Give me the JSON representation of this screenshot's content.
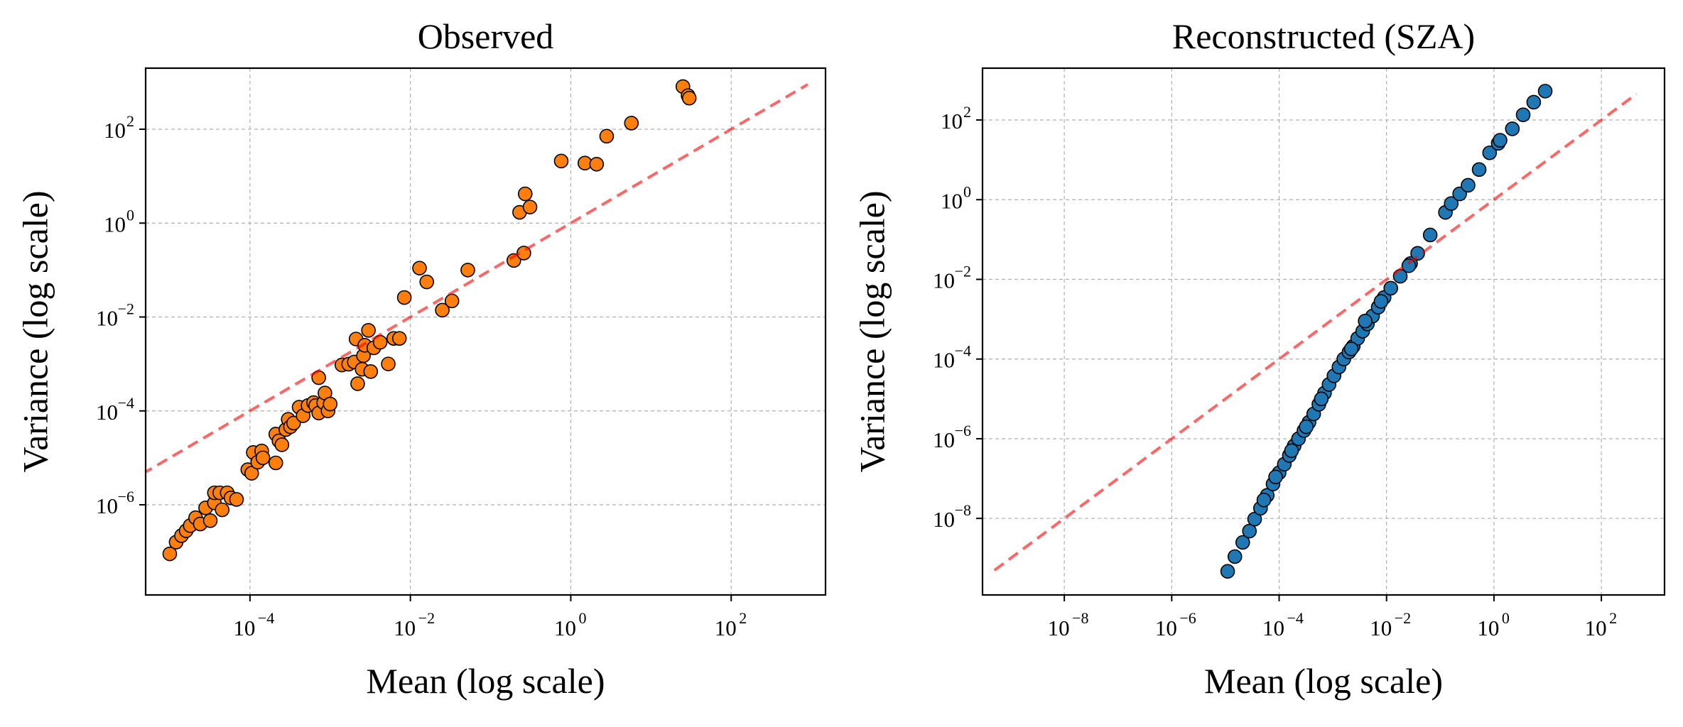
{
  "chart_data": [
    {
      "type": "scatter",
      "title": "Observed",
      "xlabel": "Mean (log scale)",
      "ylabel": "Variance (log scale)",
      "xscale": "log",
      "yscale": "log",
      "xlim": [
        5e-06,
        1500
      ],
      "ylim": [
        1.2e-08,
        2000
      ],
      "xticks": [
        -4,
        -2,
        0,
        2
      ],
      "yticks": [
        -6,
        -4,
        -2,
        0,
        2
      ],
      "grid": true,
      "marker_color": "#ff7f0e",
      "reference_line": {
        "type": "y=x",
        "x_range": [
          4.5e-06,
          900
        ],
        "color": "#ff0000"
      },
      "points": [
        [
          1e-05,
          9e-08
        ],
        [
          1.2e-05,
          1.6e-07
        ],
        [
          1.4e-05,
          2.2e-07
        ],
        [
          1.6e-05,
          2.8e-07
        ],
        [
          1.8e-05,
          3.6e-07
        ],
        [
          2.1e-05,
          5.3e-07
        ],
        [
          2.4e-05,
          3.9e-07
        ],
        [
          2.8e-05,
          8.6e-07
        ],
        [
          3.2e-05,
          4.6e-07
        ],
        [
          3.6e-05,
          1.1e-06
        ],
        [
          3.6e-05,
          1.8e-06
        ],
        [
          4.2e-05,
          1.8e-06
        ],
        [
          4.5e-05,
          7.8e-07
        ],
        [
          5.2e-05,
          1.8e-06
        ],
        [
          5.8e-05,
          1.4e-06
        ],
        [
          6.8e-05,
          1.3e-06
        ],
        [
          9.4e-05,
          5.6e-06
        ],
        [
          0.000105,
          4.7e-06
        ],
        [
          0.00011,
          1.3e-05
        ],
        [
          0.000125,
          8.1e-06
        ],
        [
          0.00014,
          1.4e-05
        ],
        [
          0.000145,
          1e-05
        ],
        [
          0.00021,
          3.2e-05
        ],
        [
          0.00021,
          7.8e-06
        ],
        [
          0.00023,
          2.3e-05
        ],
        [
          0.00025,
          1.9e-05
        ],
        [
          0.00028,
          4e-05
        ],
        [
          0.0003,
          6.6e-05
        ],
        [
          0.00032,
          4.6e-05
        ],
        [
          0.00035,
          5.5e-05
        ],
        [
          0.00041,
          0.00012
        ],
        [
          0.00046,
          7.9e-05
        ],
        [
          0.00053,
          0.00013
        ],
        [
          0.00062,
          0.00015
        ],
        [
          0.00066,
          0.00013
        ],
        [
          0.00072,
          0.00051
        ],
        [
          0.00072,
          9e-05
        ],
        [
          0.00083,
          0.00015
        ],
        [
          0.00086,
          0.00024
        ],
        [
          0.00094,
          0.0001
        ],
        [
          0.001,
          0.00014
        ],
        [
          0.0014,
          0.00095
        ],
        [
          0.0017,
          0.00099
        ],
        [
          0.002,
          0.0011
        ],
        [
          0.0021,
          0.0034
        ],
        [
          0.0022,
          0.00038
        ],
        [
          0.0025,
          0.00077
        ],
        [
          0.0026,
          0.0015
        ],
        [
          0.0027,
          0.0025
        ],
        [
          0.003,
          0.0052
        ],
        [
          0.0032,
          0.00069
        ],
        [
          0.0035,
          0.0022
        ],
        [
          0.0042,
          0.0029
        ],
        [
          0.0053,
          0.001
        ],
        [
          0.0062,
          0.0035
        ],
        [
          0.0073,
          0.0035
        ],
        [
          0.0084,
          0.026
        ],
        [
          0.013,
          0.11
        ],
        [
          0.016,
          0.056
        ],
        [
          0.025,
          0.014
        ],
        [
          0.033,
          0.022
        ],
        [
          0.052,
          0.1
        ],
        [
          0.195,
          0.16
        ],
        [
          0.23,
          1.7
        ],
        [
          0.26,
          0.23
        ],
        [
          0.27,
          4.2
        ],
        [
          0.31,
          2.2
        ],
        [
          0.76,
          21.0
        ],
        [
          1.5,
          19.0
        ],
        [
          2.1,
          18.0
        ],
        [
          2.8,
          71.0
        ],
        [
          5.7,
          135.0
        ],
        [
          25,
          810.0
        ],
        [
          29,
          520.0
        ],
        [
          30,
          460.0
        ]
      ]
    },
    {
      "type": "scatter",
      "title": "Reconstructed (SZA)",
      "xlabel": "Mean (log scale)",
      "ylabel": "Variance (log scale)",
      "xscale": "log",
      "yscale": "log",
      "xlim": [
        3e-10,
        1500
      ],
      "ylim": [
        1.2e-10,
        2000
      ],
      "xticks": [
        -8,
        -6,
        -4,
        -2,
        0,
        2
      ],
      "yticks": [
        -8,
        -6,
        -4,
        -2,
        0,
        2
      ],
      "grid": true,
      "marker_color": "#1f77b4",
      "reference_line": {
        "type": "y=x",
        "x_range": [
          5e-10,
          450
        ],
        "color": "#ff0000"
      },
      "points": [
        [
          1.1e-05,
          4.7e-10
        ],
        [
          1.5e-05,
          1.1e-09
        ],
        [
          2.1e-05,
          2.5e-09
        ],
        [
          2.8e-05,
          4.8e-09
        ],
        [
          3.5e-05,
          9.6e-09
        ],
        [
          4.5e-05,
          1.8e-08
        ],
        [
          6e-05,
          3.8e-08
        ],
        [
          7.7e-05,
          7.3e-08
        ],
        [
          0.0001,
          1.4e-07
        ],
        [
          0.000125,
          2.3e-07
        ],
        [
          0.000155,
          3.8e-07
        ],
        [
          0.00019,
          6.6e-07
        ],
        [
          0.00023,
          1e-06
        ],
        [
          0.00029,
          1.6e-06
        ],
        [
          0.00036,
          2.6e-06
        ],
        [
          0.00044,
          4.2e-06
        ],
        [
          0.00055,
          7.3e-06
        ],
        [
          0.0007,
          1.4e-05
        ],
        [
          0.00085,
          2.3e-05
        ],
        [
          0.00105,
          3.8e-05
        ],
        [
          0.0013,
          6.3e-05
        ],
        [
          0.0016,
          0.0001
        ],
        [
          0.002,
          0.00015
        ],
        [
          0.0024,
          0.00021
        ],
        [
          0.0029,
          0.00033
        ],
        [
          0.0036,
          0.0005
        ],
        [
          0.0044,
          0.00076
        ],
        [
          0.0055,
          0.0012
        ],
        [
          0.007,
          0.002
        ],
        [
          0.009,
          0.0035
        ],
        [
          0.012,
          0.006
        ],
        [
          0.018,
          0.012
        ],
        [
          0.028,
          0.025
        ],
        [
          0.038,
          0.045
        ],
        [
          0.065,
          0.13
        ],
        [
          0.125,
          0.48
        ],
        [
          0.16,
          0.8
        ],
        [
          0.23,
          1.4
        ],
        [
          0.33,
          2.3
        ],
        [
          0.53,
          5.7
        ],
        [
          0.83,
          15.0
        ],
        [
          1.2,
          26.0
        ],
        [
          2.2,
          60.0
        ],
        [
          3.5,
          135.0
        ],
        [
          5.5,
          280.0
        ],
        [
          9.0,
          530.0
        ],
        [
          1.3,
          31.0
        ],
        [
          0.026,
          0.022
        ],
        [
          0.0079,
          0.0028
        ],
        [
          0.004,
          0.0009
        ],
        [
          0.0022,
          0.00018
        ],
        [
          0.00061,
          1e-05
        ],
        [
          0.00032,
          2e-06
        ],
        [
          0.00017,
          5e-07
        ],
        [
          8.6e-05,
          1.1e-07
        ],
        [
          5.2e-05,
          2.9e-08
        ]
      ]
    }
  ]
}
